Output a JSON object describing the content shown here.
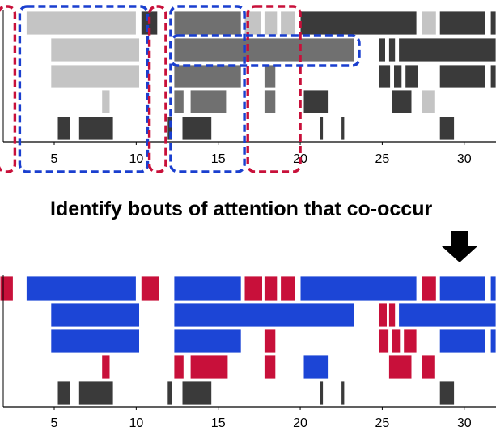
{
  "title_text": "Identify bouts of attention that co-occur",
  "axis_ticks": [
    "5",
    "10",
    "15",
    "20",
    "25",
    "30"
  ],
  "colors": {
    "blue": "#1c45d6",
    "red": "#c8103a",
    "dark_gray": "#3a3a3a",
    "mid_gray": "#707070",
    "light_gray": "#c4c4c4",
    "blue_outline": "#1a3fcf",
    "red_outline": "#c8103a"
  },
  "icons": {
    "arrow": "down-arrow-icon"
  },
  "chart_data": [
    {
      "type": "timeline",
      "panel": "top",
      "xlim": [
        1.5,
        33.5
      ],
      "x_ticks": [
        5,
        10,
        15,
        20,
        25,
        30
      ],
      "lanes": [
        {
          "lane": 1,
          "bouts": [
            {
              "start": 3.3,
              "end": 10.0,
              "shade": "light_gray"
            },
            {
              "start": 10.3,
              "end": 11.3,
              "shade": "dark_gray"
            },
            {
              "start": 12.3,
              "end": 16.4,
              "shade": "mid_gray"
            },
            {
              "start": 16.6,
              "end": 17.6,
              "shade": "light_gray"
            },
            {
              "start": 17.8,
              "end": 18.6,
              "shade": "light_gray"
            },
            {
              "start": 18.8,
              "end": 19.7,
              "shade": "light_gray"
            },
            {
              "start": 20.0,
              "end": 27.1,
              "shade": "dark_gray"
            },
            {
              "start": 27.4,
              "end": 28.3,
              "shade": "light_gray"
            },
            {
              "start": 28.5,
              "end": 31.3,
              "shade": "dark_gray"
            },
            {
              "start": 31.6,
              "end": 33.5,
              "shade": "dark_gray"
            }
          ]
        },
        {
          "lane": 2,
          "bouts": [
            {
              "start": 4.8,
              "end": 10.2,
              "shade": "light_gray"
            },
            {
              "start": 12.3,
              "end": 23.3,
              "shade": "mid_gray"
            },
            {
              "start": 24.8,
              "end": 25.2,
              "shade": "dark_gray"
            },
            {
              "start": 25.4,
              "end": 25.8,
              "shade": "dark_gray"
            },
            {
              "start": 26.0,
              "end": 33.5,
              "shade": "dark_gray"
            }
          ]
        },
        {
          "lane": 3,
          "bouts": [
            {
              "start": 4.8,
              "end": 10.2,
              "shade": "light_gray"
            },
            {
              "start": 12.3,
              "end": 16.4,
              "shade": "mid_gray"
            },
            {
              "start": 17.8,
              "end": 18.5,
              "shade": "mid_gray"
            },
            {
              "start": 24.8,
              "end": 25.5,
              "shade": "dark_gray"
            },
            {
              "start": 25.7,
              "end": 26.2,
              "shade": "dark_gray"
            },
            {
              "start": 26.4,
              "end": 27.2,
              "shade": "dark_gray"
            },
            {
              "start": 28.5,
              "end": 31.3,
              "shade": "dark_gray"
            },
            {
              "start": 31.6,
              "end": 33.5,
              "shade": "dark_gray"
            }
          ]
        },
        {
          "lane": 4,
          "bouts": [
            {
              "start": 7.9,
              "end": 8.4,
              "shade": "light_gray"
            },
            {
              "start": 12.3,
              "end": 12.9,
              "shade": "mid_gray"
            },
            {
              "start": 13.3,
              "end": 15.5,
              "shade": "mid_gray"
            },
            {
              "start": 17.8,
              "end": 18.5,
              "shade": "mid_gray"
            },
            {
              "start": 20.2,
              "end": 21.7,
              "shade": "dark_gray"
            },
            {
              "start": 25.6,
              "end": 26.8,
              "shade": "dark_gray"
            },
            {
              "start": 27.4,
              "end": 28.2,
              "shade": "light_gray"
            }
          ]
        },
        {
          "lane": 5,
          "bouts": [
            {
              "start": 5.2,
              "end": 6.0,
              "shade": "dark_gray"
            },
            {
              "start": 6.5,
              "end": 8.6,
              "shade": "dark_gray"
            },
            {
              "start": 11.9,
              "end": 12.2,
              "shade": "dark_gray"
            },
            {
              "start": 12.8,
              "end": 14.6,
              "shade": "dark_gray"
            },
            {
              "start": 21.2,
              "end": 21.4,
              "shade": "dark_gray"
            },
            {
              "start": 22.5,
              "end": 22.7,
              "shade": "dark_gray"
            },
            {
              "start": 28.5,
              "end": 29.4,
              "shade": "dark_gray"
            }
          ]
        }
      ],
      "highlight_boxes": [
        {
          "start": 1.6,
          "end": 2.6,
          "color": "red_outline"
        },
        {
          "start": 2.9,
          "end": 10.7,
          "color": "blue_outline"
        },
        {
          "start": 10.8,
          "end": 11.8,
          "color": "red_outline"
        },
        {
          "start": 12.1,
          "end": 16.6,
          "color": "blue_outline"
        },
        {
          "start": 16.8,
          "end": 20.0,
          "color": "red_outline"
        },
        {
          "start": 12.1,
          "end": 23.6,
          "color": "blue_outline",
          "lanes": "1-2"
        }
      ]
    },
    {
      "type": "timeline",
      "panel": "bottom",
      "xlim": [
        1.5,
        33.5
      ],
      "x_ticks": [
        5,
        10,
        15,
        20,
        25,
        30
      ],
      "lanes": [
        {
          "lane": 1,
          "bouts": [
            {
              "start": 1.7,
              "end": 2.5,
              "color": "red"
            },
            {
              "start": 3.3,
              "end": 10.0,
              "color": "blue"
            },
            {
              "start": 10.3,
              "end": 11.4,
              "color": "red"
            },
            {
              "start": 12.3,
              "end": 16.4,
              "color": "blue"
            },
            {
              "start": 16.6,
              "end": 17.7,
              "color": "red"
            },
            {
              "start": 17.8,
              "end": 18.6,
              "color": "red"
            },
            {
              "start": 18.8,
              "end": 19.7,
              "color": "red"
            },
            {
              "start": 20.0,
              "end": 27.1,
              "color": "blue"
            },
            {
              "start": 27.4,
              "end": 28.3,
              "color": "red"
            },
            {
              "start": 28.5,
              "end": 31.3,
              "color": "blue"
            },
            {
              "start": 31.6,
              "end": 33.5,
              "color": "blue"
            }
          ]
        },
        {
          "lane": 2,
          "bouts": [
            {
              "start": 4.8,
              "end": 10.2,
              "color": "blue"
            },
            {
              "start": 12.3,
              "end": 23.3,
              "color": "blue"
            },
            {
              "start": 24.8,
              "end": 25.3,
              "color": "red"
            },
            {
              "start": 25.4,
              "end": 25.8,
              "color": "red"
            },
            {
              "start": 26.0,
              "end": 33.5,
              "color": "blue"
            }
          ]
        },
        {
          "lane": 3,
          "bouts": [
            {
              "start": 4.8,
              "end": 10.2,
              "color": "blue"
            },
            {
              "start": 12.3,
              "end": 16.4,
              "color": "blue"
            },
            {
              "start": 17.8,
              "end": 18.5,
              "color": "red"
            },
            {
              "start": 24.8,
              "end": 25.4,
              "color": "red"
            },
            {
              "start": 25.6,
              "end": 26.1,
              "color": "red"
            },
            {
              "start": 26.3,
              "end": 27.1,
              "color": "red"
            },
            {
              "start": 28.5,
              "end": 31.3,
              "color": "blue"
            },
            {
              "start": 31.6,
              "end": 33.5,
              "color": "blue"
            }
          ]
        },
        {
          "lane": 4,
          "bouts": [
            {
              "start": 7.9,
              "end": 8.4,
              "color": "red"
            },
            {
              "start": 12.3,
              "end": 12.9,
              "color": "red"
            },
            {
              "start": 13.3,
              "end": 15.6,
              "color": "red"
            },
            {
              "start": 17.8,
              "end": 18.5,
              "color": "red"
            },
            {
              "start": 20.2,
              "end": 21.7,
              "color": "blue"
            },
            {
              "start": 25.4,
              "end": 26.8,
              "color": "red"
            },
            {
              "start": 27.4,
              "end": 28.2,
              "color": "red"
            }
          ]
        },
        {
          "lane": 5,
          "bouts": [
            {
              "start": 5.2,
              "end": 6.0,
              "color": "dark_gray"
            },
            {
              "start": 6.5,
              "end": 8.6,
              "color": "dark_gray"
            },
            {
              "start": 11.9,
              "end": 12.2,
              "color": "dark_gray"
            },
            {
              "start": 12.8,
              "end": 14.6,
              "color": "dark_gray"
            },
            {
              "start": 21.2,
              "end": 21.4,
              "color": "dark_gray"
            },
            {
              "start": 22.5,
              "end": 22.7,
              "color": "dark_gray"
            },
            {
              "start": 28.5,
              "end": 29.4,
              "color": "dark_gray"
            }
          ]
        }
      ]
    }
  ]
}
